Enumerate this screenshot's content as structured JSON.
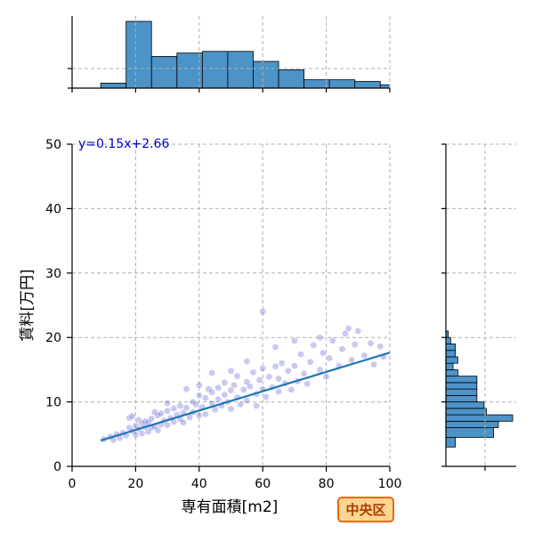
{
  "chart_data": {
    "type": "scatter",
    "xlabel": "専有面積[m2]",
    "ylabel": "賃料[万円]",
    "xlim": [
      0,
      100
    ],
    "ylim": [
      0,
      50
    ],
    "x_ticks": [
      "0",
      "20",
      "40",
      "60",
      "80",
      "100"
    ],
    "y_ticks": [
      "0",
      "10",
      "20",
      "30",
      "40",
      "50"
    ],
    "grid": true,
    "points_color": "#3c3cc8",
    "regression": {
      "equation_label": "y=0.15x+2.66",
      "slope": 0.15,
      "intercept": 2.66,
      "x_range": [
        9,
        100
      ],
      "color": "#1f77b4",
      "label_color": "#0000cc"
    },
    "points": [
      [
        10,
        4.2
      ],
      [
        12,
        4.6
      ],
      [
        13,
        4.1
      ],
      [
        14,
        5.0
      ],
      [
        15,
        4.4
      ],
      [
        16,
        5.2
      ],
      [
        17,
        4.8
      ],
      [
        18,
        6.0
      ],
      [
        18,
        7.5
      ],
      [
        19,
        5.5
      ],
      [
        19,
        7.8
      ],
      [
        20,
        6.3
      ],
      [
        20,
        4.9
      ],
      [
        21,
        7.2
      ],
      [
        21,
        5.8
      ],
      [
        22,
        6.6
      ],
      [
        22,
        5.1
      ],
      [
        23,
        7.0
      ],
      [
        23,
        6.1
      ],
      [
        24,
        6.8
      ],
      [
        24,
        5.4
      ],
      [
        25,
        7.4
      ],
      [
        25,
        6.0
      ],
      [
        26,
        6.2
      ],
      [
        27,
        7.9
      ],
      [
        27,
        5.6
      ],
      [
        28,
        6.5
      ],
      [
        28,
        8.2
      ],
      [
        29,
        7.1
      ],
      [
        30,
        6.4
      ],
      [
        30,
        8.6
      ],
      [
        31,
        7.5
      ],
      [
        32,
        6.9
      ],
      [
        32,
        9.0
      ],
      [
        33,
        8.0
      ],
      [
        34,
        7.3
      ],
      [
        34,
        9.4
      ],
      [
        35,
        8.3
      ],
      [
        35,
        6.8
      ],
      [
        36,
        9.1
      ],
      [
        37,
        7.6
      ],
      [
        38,
        10.0
      ],
      [
        38,
        8.4
      ],
      [
        39,
        9.6
      ],
      [
        40,
        7.9
      ],
      [
        40,
        11.0
      ],
      [
        41,
        9.2
      ],
      [
        42,
        10.6
      ],
      [
        42,
        8.1
      ],
      [
        43,
        12.0
      ],
      [
        44,
        9.8
      ],
      [
        44,
        11.5
      ],
      [
        45,
        8.8
      ],
      [
        46,
        10.4
      ],
      [
        46,
        12.2
      ],
      [
        47,
        9.4
      ],
      [
        48,
        11.1
      ],
      [
        48,
        13.0
      ],
      [
        49,
        10.0
      ],
      [
        50,
        11.8
      ],
      [
        50,
        8.9
      ],
      [
        51,
        12.6
      ],
      [
        52,
        10.7
      ],
      [
        52,
        14.0
      ],
      [
        53,
        9.6
      ],
      [
        54,
        11.9
      ],
      [
        55,
        13.1
      ],
      [
        55,
        10.2
      ],
      [
        56,
        12.4
      ],
      [
        57,
        14.6
      ],
      [
        58,
        11.2
      ],
      [
        58,
        9.4
      ],
      [
        59,
        13.4
      ],
      [
        60,
        12.0
      ],
      [
        60,
        15.2
      ],
      [
        61,
        10.8
      ],
      [
        62,
        13.9
      ],
      [
        63,
        12.3
      ],
      [
        64,
        15.5
      ],
      [
        65,
        11.6
      ],
      [
        65,
        13.6
      ],
      [
        66,
        16.0
      ],
      [
        67,
        12.9
      ],
      [
        68,
        14.8
      ],
      [
        69,
        11.9
      ],
      [
        70,
        15.6
      ],
      [
        71,
        13.2
      ],
      [
        72,
        17.4
      ],
      [
        73,
        14.4
      ],
      [
        74,
        12.8
      ],
      [
        75,
        16.2
      ],
      [
        76,
        18.8
      ],
      [
        78,
        15.0
      ],
      [
        79,
        17.6
      ],
      [
        80,
        13.9
      ],
      [
        81,
        16.8
      ],
      [
        82,
        19.5
      ],
      [
        84,
        15.6
      ],
      [
        85,
        18.2
      ],
      [
        86,
        20.6
      ],
      [
        88,
        16.5
      ],
      [
        89,
        18.9
      ],
      [
        90,
        21.0
      ],
      [
        92,
        17.2
      ],
      [
        94,
        19.1
      ],
      [
        95,
        15.8
      ],
      [
        97,
        18.6
      ],
      [
        98,
        17.0
      ],
      [
        60,
        24.0
      ],
      [
        44,
        14.5
      ],
      [
        36,
        12.0
      ],
      [
        26,
        8.4
      ],
      [
        50,
        14.8
      ],
      [
        64,
        18.5
      ],
      [
        70,
        19.5
      ],
      [
        78,
        20.0
      ],
      [
        87,
        21.4
      ],
      [
        55,
        16.3
      ],
      [
        40,
        12.6
      ],
      [
        30,
        9.8
      ]
    ],
    "x_hist": {
      "color": "#4c93c8",
      "edges": [
        9,
        17,
        25,
        33,
        41,
        49,
        57,
        65,
        73,
        81,
        89,
        97,
        101
      ],
      "counts": [
        3,
        40,
        19,
        21,
        22,
        22,
        16,
        11,
        5,
        5,
        4,
        2
      ]
    },
    "y_hist": {
      "color": "#4c93c8",
      "edges": [
        3,
        4.5,
        6,
        7,
        8,
        9,
        10,
        11,
        12,
        13,
        14,
        15,
        16,
        17,
        18,
        19,
        20,
        21,
        22,
        23.5,
        24.5
      ],
      "counts": [
        4,
        20,
        22,
        28,
        17,
        16,
        13,
        13,
        13,
        13,
        5,
        3,
        5,
        4,
        4,
        2,
        1,
        0,
        0,
        0
      ]
    },
    "badge": {
      "text": "中央区",
      "fill": "#ffd592",
      "border": "#e86a10",
      "text_color": "#b03a00"
    }
  }
}
